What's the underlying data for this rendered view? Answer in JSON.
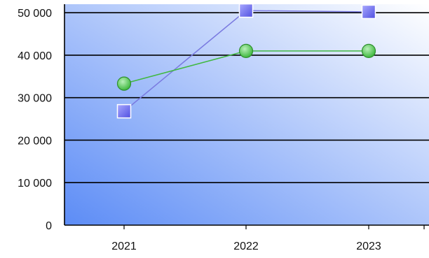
{
  "chart_data": {
    "type": "line",
    "categories": [
      "2021",
      "2022",
      "2023"
    ],
    "series": [
      {
        "color": "#6b6bf0",
        "line_color": "#7a7ae0",
        "marker": "square",
        "values": [
          26800,
          50500,
          50200
        ]
      },
      {
        "color": "#5fd35f",
        "line_color": "#40b840",
        "marker": "circle",
        "values": [
          33300,
          41000,
          41000
        ]
      }
    ],
    "ylim": [
      0,
      52000
    ],
    "yticks": [
      0,
      10000,
      20000,
      30000,
      40000,
      50000
    ],
    "ytick_labels": [
      "0",
      "10 000",
      "20 000",
      "30 000",
      "40 000",
      "50 000"
    ],
    "grid": true,
    "background_gradient": [
      "#5c8cf6",
      "#ffffff"
    ]
  }
}
